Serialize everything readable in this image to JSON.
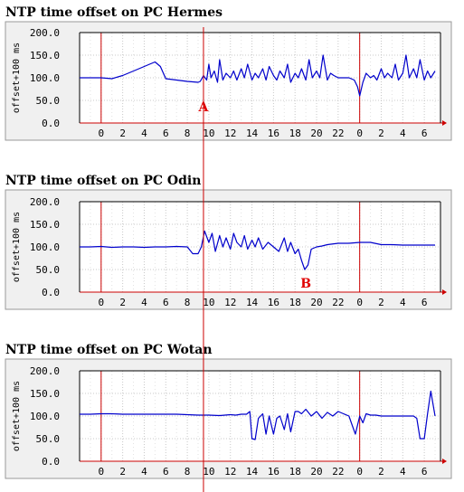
{
  "chart_data": [
    {
      "type": "line",
      "title": "NTP time offset on PC Hermes",
      "ylabel": "offset+100 ms",
      "ylim": [
        0,
        200
      ],
      "yticks": [
        "0.0",
        "50.0",
        "100.0",
        "150.0",
        "200.0"
      ],
      "xticks": [
        "0",
        "2",
        "4",
        "6",
        "8",
        "10",
        "12",
        "14",
        "16",
        "18",
        "20",
        "22",
        "0",
        "2",
        "4",
        "6"
      ],
      "grid": true,
      "series_color": "#0000cc",
      "annotations": [
        {
          "label": "A",
          "x": 9.5
        }
      ],
      "x": [
        -2,
        -1,
        0,
        1,
        2,
        3,
        4,
        4.5,
        5,
        5.5,
        6,
        7,
        8,
        9,
        9.2,
        9.5,
        9.8,
        10,
        10.2,
        10.5,
        10.8,
        11,
        11.3,
        11.6,
        12,
        12.3,
        12.6,
        13,
        13.3,
        13.6,
        14,
        14.3,
        14.6,
        15,
        15.3,
        15.6,
        16,
        16.3,
        16.6,
        17,
        17.3,
        17.6,
        18,
        18.3,
        18.6,
        19,
        19.3,
        19.6,
        20,
        20.3,
        20.6,
        21,
        21.3,
        21.6,
        22,
        22.5,
        23,
        23.5,
        23.8,
        24,
        24.3,
        24.6,
        25,
        25.3,
        25.6,
        26,
        26.3,
        26.6,
        27,
        27.3,
        27.6,
        28,
        28.3,
        28.6,
        29,
        29.3,
        29.6,
        30,
        30.3,
        30.6,
        31
      ],
      "values": [
        100,
        100,
        100,
        98,
        105,
        115,
        125,
        130,
        135,
        125,
        98,
        95,
        92,
        90,
        92,
        105,
        95,
        130,
        100,
        115,
        90,
        140,
        95,
        110,
        100,
        115,
        95,
        120,
        100,
        130,
        95,
        110,
        100,
        120,
        95,
        125,
        105,
        95,
        115,
        100,
        130,
        90,
        110,
        100,
        120,
        95,
        140,
        100,
        115,
        100,
        150,
        95,
        110,
        105,
        100,
        100,
        100,
        95,
        80,
        60,
        90,
        110,
        100,
        105,
        95,
        120,
        100,
        110,
        100,
        130,
        95,
        110,
        150,
        100,
        120,
        100,
        140,
        95,
        115,
        100,
        115
      ]
    },
    {
      "type": "line",
      "title": "NTP time offset on PC Odin",
      "ylabel": "offset+100 ms",
      "ylim": [
        0,
        200
      ],
      "yticks": [
        "0.0",
        "50.0",
        "100.0",
        "150.0",
        "200.0"
      ],
      "xticks": [
        "0",
        "2",
        "4",
        "6",
        "8",
        "10",
        "12",
        "14",
        "16",
        "18",
        "20",
        "22",
        "0",
        "2",
        "4",
        "6"
      ],
      "grid": true,
      "series_color": "#0000cc",
      "annotations": [
        {
          "label": "B",
          "x": 19
        }
      ],
      "x": [
        -2,
        -1,
        0,
        1,
        2,
        3,
        4,
        5,
        6,
        7,
        8,
        8.5,
        9,
        9.3,
        9.6,
        10,
        10.3,
        10.6,
        11,
        11.3,
        11.6,
        12,
        12.3,
        12.6,
        13,
        13.3,
        13.6,
        14,
        14.3,
        14.6,
        15,
        15.5,
        16,
        16.5,
        17,
        17.3,
        17.6,
        18,
        18.3,
        18.6,
        18.9,
        19.2,
        19.5,
        20,
        20.5,
        21,
        22,
        23,
        24,
        25,
        26,
        27,
        28,
        29,
        30,
        31
      ],
      "values": [
        100,
        100,
        101,
        99,
        100,
        100,
        99,
        100,
        100,
        101,
        100,
        85,
        85,
        100,
        135,
        110,
        130,
        90,
        125,
        100,
        120,
        95,
        130,
        110,
        100,
        125,
        95,
        115,
        100,
        120,
        95,
        110,
        100,
        90,
        120,
        90,
        110,
        85,
        95,
        70,
        50,
        60,
        95,
        100,
        102,
        105,
        108,
        108,
        110,
        110,
        105,
        105,
        104,
        104,
        104,
        104
      ]
    },
    {
      "type": "line",
      "title": "NTP time offset on PC Wotan",
      "ylabel": "offset+100 ms",
      "ylim": [
        0,
        200
      ],
      "yticks": [
        "0.0",
        "50.0",
        "100.0",
        "150.0",
        "200.0"
      ],
      "xticks": [
        "0",
        "2",
        "4",
        "6",
        "8",
        "10",
        "12",
        "14",
        "16",
        "18",
        "20",
        "22",
        "0",
        "2",
        "4",
        "6"
      ],
      "grid": true,
      "series_color": "#0000cc",
      "annotations": [],
      "x": [
        -2,
        -1,
        0,
        1,
        2,
        3,
        4,
        5,
        6,
        7,
        8,
        9,
        10,
        11,
        12,
        12.5,
        13,
        13.5,
        13.8,
        14,
        14.3,
        14.6,
        15,
        15.3,
        15.6,
        16,
        16.3,
        16.6,
        17,
        17.3,
        17.6,
        18,
        18.3,
        18.6,
        19,
        19.5,
        20,
        20.5,
        21,
        21.5,
        22,
        22.5,
        23,
        23.3,
        23.6,
        24,
        24.3,
        24.6,
        25,
        25.5,
        26,
        27,
        28,
        29,
        29.3,
        29.6,
        30,
        30.3,
        30.6,
        31
      ],
      "values": [
        104,
        104,
        105,
        105,
        104,
        104,
        104,
        104,
        104,
        104,
        103,
        102,
        102,
        101,
        103,
        102,
        104,
        104,
        110,
        50,
        48,
        95,
        105,
        60,
        100,
        60,
        95,
        100,
        70,
        105,
        65,
        110,
        110,
        105,
        115,
        100,
        110,
        95,
        108,
        100,
        110,
        105,
        100,
        80,
        60,
        100,
        85,
        105,
        102,
        102,
        100,
        100,
        100,
        100,
        95,
        50,
        50,
        105,
        155,
        100
      ]
    }
  ]
}
